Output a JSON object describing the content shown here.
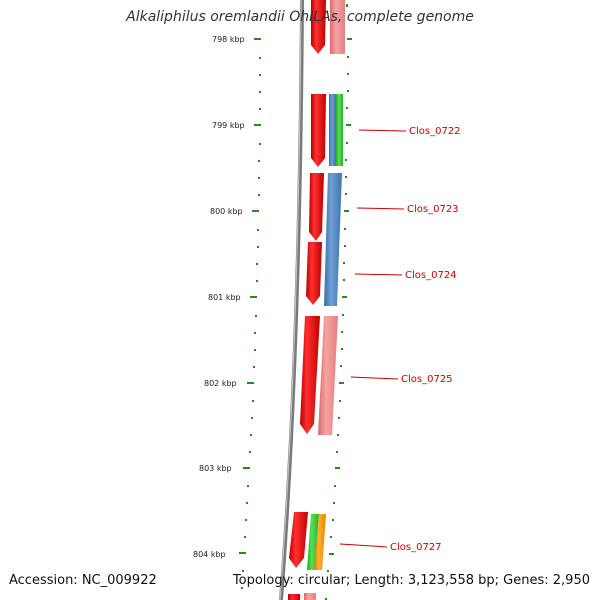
{
  "title": "Alkaliphilus oremlandii OhILAs, complete genome",
  "footer": {
    "accession": "Accession: NC_009922",
    "summary": "Topology: circular; Length: 3,123,558 bp; Genes: 2,950"
  },
  "scale_labels": [
    "798 kbp",
    "799 kbp",
    "800 kbp",
    "801 kbp",
    "802 kbp",
    "803 kbp",
    "804 kbp"
  ],
  "gene_labels": [
    "Clos_0722",
    "Clos_0723",
    "Clos_0724",
    "Clos_0725",
    "Clos_0727"
  ],
  "colors": {
    "backbone": "#7a7a7a",
    "tick": "#2b8a1e",
    "cds": "#ee0000",
    "gene_pink": "#f08a8a",
    "gene_blue": "#4a7fbf",
    "gene_green": "#33cc33",
    "gene_orange": "#ff9900",
    "label": "#cc0000"
  }
}
